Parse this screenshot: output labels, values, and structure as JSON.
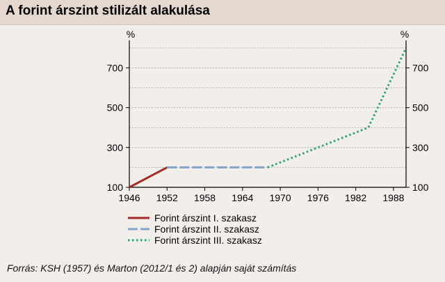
{
  "title": "A forint árszint stilizált alakulása",
  "source": "Forrás: KSH (1957) és Marton (2012/1 és 2) alapján saját számítás",
  "colors": {
    "background": "#f2efeb",
    "title_bar": "#e4d8cf",
    "series_1": "#a52a2a",
    "series_2": "#7fa6c9",
    "series_3": "#2aa37a",
    "grid": "#9a9a9a"
  },
  "chart_data": {
    "type": "line",
    "left_axis_unit": "%",
    "right_axis_unit": "%",
    "x_ticks": [
      "1946",
      "1952",
      "1958",
      "1964",
      "1970",
      "1976",
      "1982",
      "1988"
    ],
    "y_ticks": [
      "100",
      "300",
      "500",
      "700"
    ],
    "xlim": [
      1946,
      1990
    ],
    "ylim": [
      100,
      810
    ],
    "grid": "horizontal dotted",
    "legend_position": "bottom",
    "series": [
      {
        "name": "Forint árszint I. szakasz",
        "style": "solid",
        "points": [
          [
            1946,
            100
          ],
          [
            1952,
            200
          ]
        ]
      },
      {
        "name": "Forint árszint II. szakasz",
        "style": "dashed",
        "points": [
          [
            1952,
            200
          ],
          [
            1968,
            200
          ]
        ]
      },
      {
        "name": "Forint árszint III. szakasz",
        "style": "dotted",
        "points": [
          [
            1968,
            200
          ],
          [
            1976,
            300
          ],
          [
            1984,
            400
          ],
          [
            1990,
            800
          ]
        ]
      }
    ]
  }
}
